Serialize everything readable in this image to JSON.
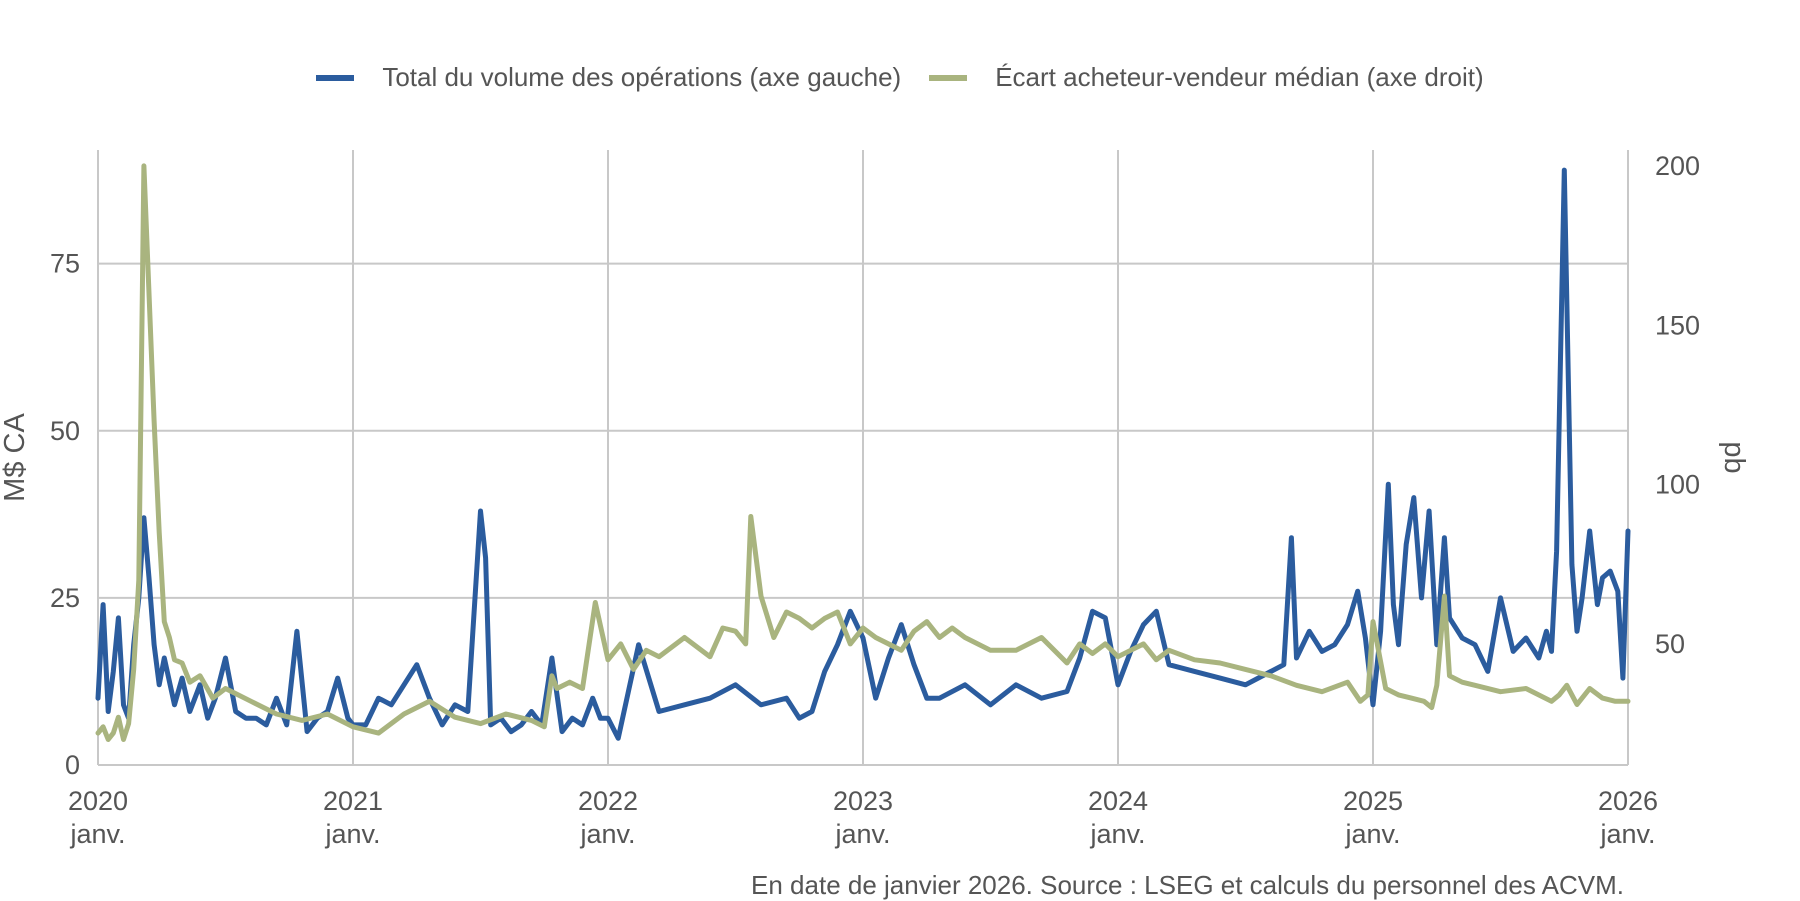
{
  "colors": {
    "volume": "#2b5c9e",
    "spread": "#a9b47f",
    "grid": "#c8c8c8",
    "text": "#555555"
  },
  "legend": {
    "volume": "Total du volume des opérations (axe gauche)",
    "spread": "Écart acheteur-vendeur médian (axe droit)"
  },
  "note": "En date de janvier 2026. Source : LSEG et calculs du personnel des ACVM.",
  "chart_data": {
    "type": "line",
    "title": "",
    "ylabel_left": "M$ CA",
    "ylabel_right": "pb",
    "x_ticks": [
      {
        "year": "2020",
        "month": "janv."
      },
      {
        "year": "2021",
        "month": "janv."
      },
      {
        "year": "2022",
        "month": "janv."
      },
      {
        "year": "2023",
        "month": "janv."
      },
      {
        "year": "2024",
        "month": "janv."
      },
      {
        "year": "2025",
        "month": "janv."
      },
      {
        "year": "2026",
        "month": "janv."
      }
    ],
    "xlim": [
      2020.0,
      2026.0
    ],
    "ylim_left": [
      0,
      92
    ],
    "yticks_left": [
      0,
      25,
      50,
      75
    ],
    "ylim_right": [
      12,
      205
    ],
    "yticks_right": [
      50,
      100,
      150,
      200
    ],
    "grid": true,
    "legend_position": "top-center",
    "series": [
      {
        "name": "Total du volume des opérations (axe gauche)",
        "axis": "left",
        "x": [
          2020.0,
          2020.02,
          2020.04,
          2020.06,
          2020.08,
          2020.1,
          2020.12,
          2020.14,
          2020.16,
          2020.18,
          2020.2,
          2020.22,
          2020.24,
          2020.26,
          2020.3,
          2020.33,
          2020.36,
          2020.38,
          2020.4,
          2020.43,
          2020.46,
          2020.5,
          2020.54,
          2020.58,
          2020.62,
          2020.66,
          2020.7,
          2020.74,
          2020.78,
          2020.82,
          2020.86,
          2020.9,
          2020.94,
          2020.98,
          2021.0,
          2021.05,
          2021.1,
          2021.15,
          2021.2,
          2021.25,
          2021.3,
          2021.35,
          2021.4,
          2021.45,
          2021.5,
          2021.52,
          2021.54,
          2021.58,
          2021.62,
          2021.66,
          2021.7,
          2021.74,
          2021.78,
          2021.82,
          2021.86,
          2021.9,
          2021.94,
          2021.97,
          2022.0,
          2022.04,
          2022.08,
          2022.12,
          2022.2,
          2022.3,
          2022.4,
          2022.5,
          2022.6,
          2022.7,
          2022.75,
          2022.8,
          2022.85,
          2022.9,
          2022.95,
          2023.0,
          2023.05,
          2023.1,
          2023.15,
          2023.2,
          2023.25,
          2023.3,
          2023.4,
          2023.5,
          2023.6,
          2023.7,
          2023.8,
          2023.85,
          2023.9,
          2023.95,
          2024.0,
          2024.05,
          2024.1,
          2024.15,
          2024.2,
          2024.3,
          2024.4,
          2024.5,
          2024.6,
          2024.65,
          2024.68,
          2024.7,
          2024.75,
          2024.8,
          2024.85,
          2024.9,
          2024.94,
          2024.97,
          2025.0,
          2025.03,
          2025.06,
          2025.08,
          2025.1,
          2025.13,
          2025.16,
          2025.19,
          2025.22,
          2025.25,
          2025.28,
          2025.3,
          2025.35,
          2025.4,
          2025.45,
          2025.5,
          2025.55,
          2025.6,
          2025.65,
          2025.68,
          2025.7,
          2025.72,
          2025.75,
          2025.78,
          2025.8,
          2025.82,
          2025.85,
          2025.88,
          2025.9,
          2025.93,
          2025.96,
          2025.98,
          2026.0
        ],
        "values": [
          10,
          24,
          8,
          14,
          22,
          9,
          7,
          18,
          25,
          37,
          28,
          18,
          12,
          16,
          9,
          13,
          8,
          10,
          12,
          7,
          10,
          16,
          8,
          7,
          7,
          6,
          10,
          6,
          20,
          5,
          7,
          8,
          13,
          7,
          6,
          6,
          10,
          9,
          12,
          15,
          10,
          6,
          9,
          8,
          38,
          31,
          6,
          7,
          5,
          6,
          8,
          6,
          16,
          5,
          7,
          6,
          10,
          7,
          7,
          4,
          11,
          18,
          8,
          9,
          10,
          12,
          9,
          10,
          7,
          8,
          14,
          18,
          23,
          19,
          10,
          16,
          21,
          15,
          10,
          10,
          12,
          9,
          12,
          10,
          11,
          16,
          23,
          22,
          12,
          17,
          21,
          23,
          15,
          14,
          13,
          12,
          14,
          15,
          34,
          16,
          20,
          17,
          18,
          21,
          26,
          19,
          9,
          20,
          42,
          24,
          18,
          33,
          40,
          25,
          38,
          18,
          34,
          22,
          19,
          18,
          14,
          25,
          17,
          19,
          16,
          20,
          17,
          32,
          89,
          30,
          20,
          25,
          35,
          24,
          28,
          29,
          26,
          13,
          35
        ]
      },
      {
        "name": "Écart acheteur-vendeur médian (axe droit)",
        "axis": "right",
        "x": [
          2020.0,
          2020.02,
          2020.04,
          2020.06,
          2020.08,
          2020.1,
          2020.12,
          2020.14,
          2020.16,
          2020.18,
          2020.2,
          2020.22,
          2020.24,
          2020.26,
          2020.28,
          2020.3,
          2020.33,
          2020.36,
          2020.4,
          2020.45,
          2020.5,
          2020.6,
          2020.7,
          2020.8,
          2020.9,
          2021.0,
          2021.1,
          2021.2,
          2021.3,
          2021.4,
          2021.5,
          2021.6,
          2021.7,
          2021.75,
          2021.78,
          2021.8,
          2021.85,
          2021.9,
          2021.95,
          2022.0,
          2022.05,
          2022.1,
          2022.15,
          2022.2,
          2022.3,
          2022.4,
          2022.45,
          2022.5,
          2022.54,
          2022.56,
          2022.6,
          2022.65,
          2022.7,
          2022.75,
          2022.8,
          2022.85,
          2022.9,
          2022.95,
          2023.0,
          2023.05,
          2023.1,
          2023.15,
          2023.2,
          2023.25,
          2023.3,
          2023.35,
          2023.4,
          2023.5,
          2023.6,
          2023.7,
          2023.8,
          2023.85,
          2023.9,
          2023.95,
          2024.0,
          2024.05,
          2024.1,
          2024.15,
          2024.2,
          2024.3,
          2024.4,
          2024.5,
          2024.6,
          2024.7,
          2024.8,
          2024.9,
          2024.95,
          2024.98,
          2025.0,
          2025.05,
          2025.1,
          2025.15,
          2025.2,
          2025.23,
          2025.25,
          2025.28,
          2025.3,
          2025.35,
          2025.4,
          2025.5,
          2025.6,
          2025.7,
          2025.73,
          2025.76,
          2025.8,
          2025.85,
          2025.9,
          2025.95,
          2026.0
        ],
        "values": [
          22,
          24,
          20,
          22,
          27,
          20,
          25,
          42,
          70,
          200,
          160,
          120,
          85,
          57,
          52,
          45,
          44,
          38,
          40,
          33,
          36,
          32,
          28,
          26,
          28,
          24,
          22,
          28,
          32,
          27,
          25,
          28,
          26,
          24,
          40,
          36,
          38,
          36,
          63,
          45,
          50,
          42,
          48,
          46,
          52,
          46,
          55,
          54,
          50,
          90,
          65,
          52,
          60,
          58,
          55,
          58,
          60,
          50,
          55,
          52,
          50,
          48,
          54,
          57,
          52,
          55,
          52,
          48,
          48,
          52,
          44,
          50,
          47,
          50,
          46,
          48,
          50,
          45,
          48,
          45,
          44,
          42,
          40,
          37,
          35,
          38,
          32,
          34,
          57,
          36,
          34,
          33,
          32,
          30,
          37,
          65,
          40,
          38,
          37,
          35,
          36,
          32,
          34,
          37,
          31,
          36,
          33,
          32,
          32
        ]
      }
    ]
  }
}
